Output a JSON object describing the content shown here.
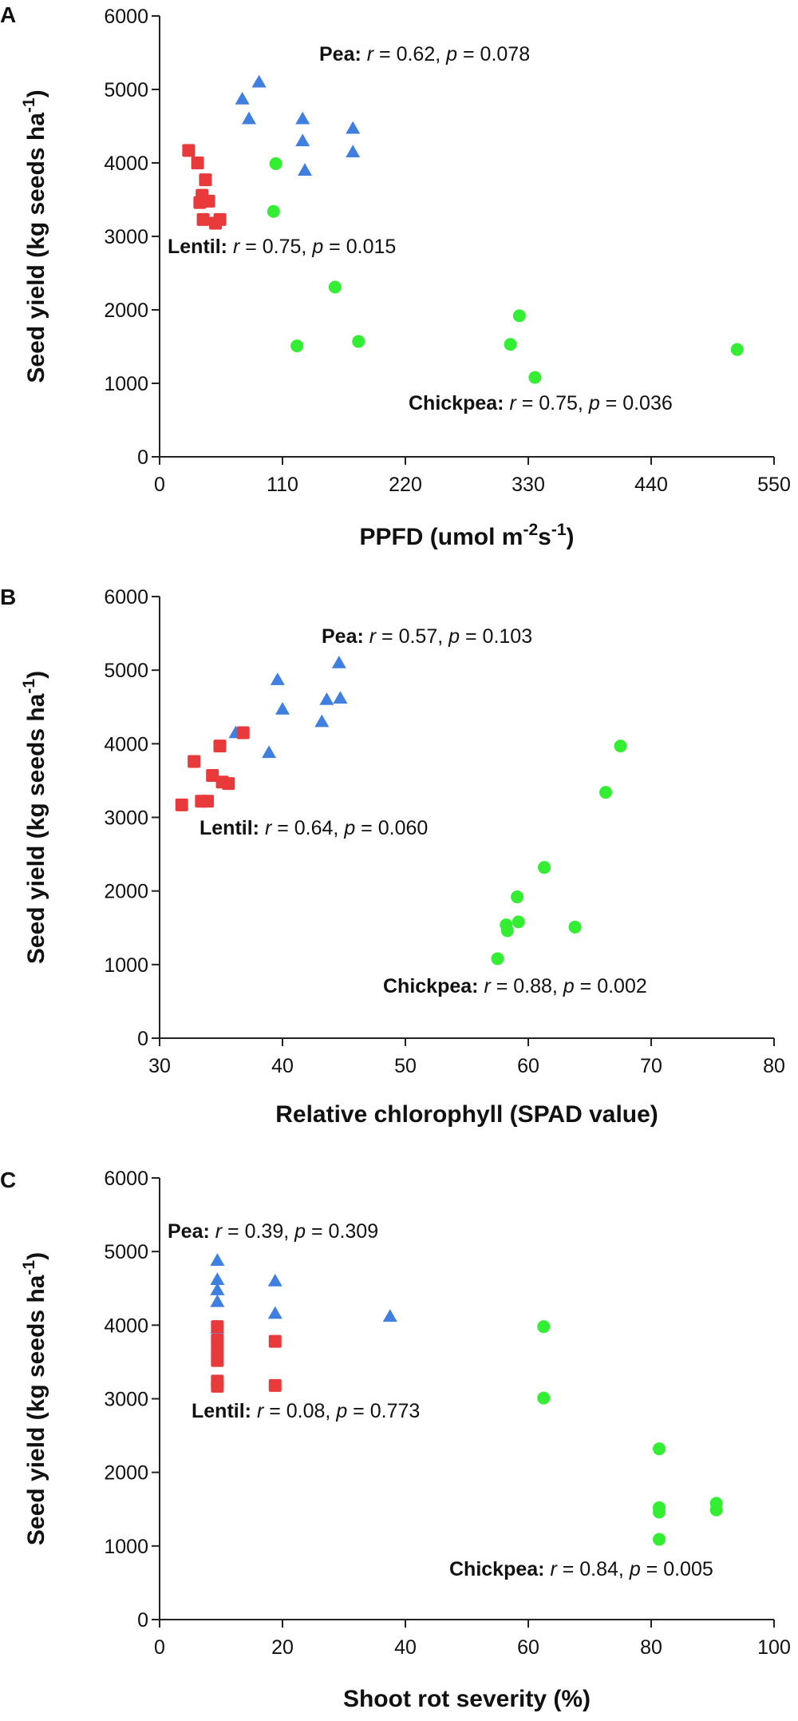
{
  "chart_data": [
    {
      "type": "scatter",
      "panel_label": "A",
      "xlabel": {
        "pre": "PPFD (",
        "italic": "u",
        "mid": "mol m",
        "sup1": "-2",
        "mid2": "s",
        "sup2": "-1",
        "post": ")"
      },
      "ylabel": {
        "main": "Seed yield (kg seeds ha",
        "sup": "-1",
        "post": ")"
      },
      "xlim": [
        0,
        550
      ],
      "ylim": [
        0,
        6000
      ],
      "xticks": [
        0,
        110,
        220,
        330,
        440,
        550
      ],
      "yticks": [
        0,
        1000,
        2000,
        3000,
        4000,
        5000,
        6000
      ],
      "series": [
        {
          "name": "Pea",
          "marker": "triangle",
          "color": "#3f7fe0",
          "points": [
            [
              74,
              4870
            ],
            [
              80,
              4600
            ],
            [
              89,
              5100
            ],
            [
              128,
              4600
            ],
            [
              128,
              4300
            ],
            [
              130,
              3900
            ],
            [
              173,
              4470
            ],
            [
              173,
              4150
            ]
          ],
          "annotation": {
            "species": "Pea:",
            "r_label": "r",
            "r_value": " = 0.62, ",
            "p_label": "p",
            "p_value": " = 0.078"
          }
        },
        {
          "name": "Lentil",
          "marker": "square",
          "color": "#e83a3a",
          "points": [
            [
              26,
              4170
            ],
            [
              34,
              4000
            ],
            [
              38,
              3560
            ],
            [
              36,
              3460
            ],
            [
              41,
              3770
            ],
            [
              44,
              3480
            ],
            [
              39,
              3230
            ],
            [
              50,
              3180
            ],
            [
              54,
              3230
            ]
          ],
          "annotation": {
            "species": "Lentil:",
            "r_label": "r",
            "r_value": " = 0.75, ",
            "p_label": "p",
            "p_value": " = 0.015"
          }
        },
        {
          "name": "Chickpea",
          "marker": "circle",
          "color": "#33ee33",
          "points": [
            [
              104,
              3990
            ],
            [
              102,
              3340
            ],
            [
              157,
              2310
            ],
            [
              123,
              1510
            ],
            [
              178,
              1570
            ],
            [
              314,
              1530
            ],
            [
              322,
              1920
            ],
            [
              336,
              1080
            ],
            [
              517,
              1460
            ]
          ],
          "annotation": {
            "species": "Chickpea:",
            "r_label": "r",
            "r_value": " = 0.75, ",
            "p_label": "p",
            "p_value": " = 0.036"
          }
        }
      ]
    },
    {
      "type": "scatter",
      "panel_label": "B",
      "xlabel": {
        "text": "Relative chlorophyll (SPAD value)"
      },
      "ylabel": {
        "main": "Seed yield (kg seeds ha",
        "sup": "-1",
        "post": ")"
      },
      "xlim": [
        30,
        80
      ],
      "ylim": [
        0,
        6000
      ],
      "xticks": [
        30,
        40,
        50,
        60,
        70,
        80
      ],
      "yticks": [
        0,
        1000,
        2000,
        3000,
        4000,
        5000,
        6000
      ],
      "series": [
        {
          "name": "Pea",
          "marker": "triangle",
          "color": "#3f7fe0",
          "points": [
            [
              36.2,
              4150
            ],
            [
              39.6,
              4870
            ],
            [
              40,
              4470
            ],
            [
              38.9,
              3880
            ],
            [
              43.2,
              4300
            ],
            [
              43.6,
              4600
            ],
            [
              44.6,
              5100
            ],
            [
              44.7,
              4620
            ]
          ],
          "annotation": {
            "species": "Pea:",
            "r_label": "r",
            "r_value": " = 0.57, ",
            "p_label": "p",
            "p_value": " = 0.103"
          }
        },
        {
          "name": "Lentil",
          "marker": "square",
          "color": "#e83a3a",
          "points": [
            [
              31.8,
              3170
            ],
            [
              32.8,
              3760
            ],
            [
              33.4,
              3220
            ],
            [
              33.9,
              3220
            ],
            [
              34.3,
              3570
            ],
            [
              34.9,
              3970
            ],
            [
              35.1,
              3480
            ],
            [
              35.6,
              3460
            ],
            [
              36.8,
              4150
            ]
          ],
          "annotation": {
            "species": "Lentil:",
            "r_label": "r",
            "r_value": " = 0.64, ",
            "p_label": "p",
            "p_value": " = 0.060"
          }
        },
        {
          "name": "Chickpea",
          "marker": "circle",
          "color": "#33ee33",
          "points": [
            [
              67.5,
              3970
            ],
            [
              66.3,
              3340
            ],
            [
              61.3,
              2320
            ],
            [
              59.1,
              1920
            ],
            [
              59.2,
              1580
            ],
            [
              58.2,
              1540
            ],
            [
              58.3,
              1460
            ],
            [
              63.8,
              1510
            ],
            [
              57.5,
              1080
            ]
          ],
          "annotation": {
            "species": "Chickpea:",
            "r_label": "r",
            "r_value": " = 0.88, ",
            "p_label": "p",
            "p_value": " = 0.002"
          }
        }
      ]
    },
    {
      "type": "scatter",
      "panel_label": "C",
      "xlabel": {
        "text": "Shoot rot severity (%)"
      },
      "ylabel": {
        "main": "Seed yield (kg seeds ha",
        "sup": "-1",
        "post": ")"
      },
      "xlim": [
        0,
        100
      ],
      "ylim": [
        0,
        6000
      ],
      "xticks": [
        0,
        20,
        40,
        60,
        80,
        100
      ],
      "yticks": [
        0,
        1000,
        2000,
        3000,
        4000,
        5000,
        6000
      ],
      "series": [
        {
          "name": "Pea",
          "marker": "triangle",
          "color": "#3f7fe0",
          "points": [
            [
              9.4,
              4880
            ],
            [
              9.4,
              4620
            ],
            [
              9.4,
              4480
            ],
            [
              9.4,
              4320
            ],
            [
              9.4,
              3960
            ],
            [
              18.8,
              4600
            ],
            [
              18.8,
              4160
            ],
            [
              37.5,
              4120
            ]
          ],
          "annotation": {
            "species": "Pea:",
            "r_label": "r",
            "r_value": " = 0.39, ",
            "p_label": "p",
            "p_value": " = 0.309"
          }
        },
        {
          "name": "Lentil",
          "marker": "square",
          "color": "#e83a3a",
          "points": [
            [
              9.4,
              3980
            ],
            [
              9.4,
              3800
            ],
            [
              9.4,
              3650
            ],
            [
              9.4,
              3520
            ],
            [
              9.4,
              3240
            ],
            [
              9.4,
              3170
            ],
            [
              18.8,
              3780
            ],
            [
              18.8,
              3180
            ]
          ],
          "annotation": {
            "species": "Lentil:",
            "r_label": "r",
            "r_value": " = 0.08, ",
            "p_label": "p",
            "p_value": " = 0.773"
          }
        },
        {
          "name": "Chickpea",
          "marker": "circle",
          "color": "#33ee33",
          "points": [
            [
              62.5,
              3980
            ],
            [
              62.5,
              3010
            ],
            [
              81.3,
              2320
            ],
            [
              81.3,
              1520
            ],
            [
              81.3,
              1460
            ],
            [
              81.3,
              1090
            ],
            [
              90.6,
              1580
            ],
            [
              90.6,
              1490
            ]
          ],
          "annotation": {
            "species": "Chickpea:",
            "r_label": "r",
            "r_value": " = 0.84, ",
            "p_label": "p",
            "p_value": " = 0.005"
          }
        }
      ]
    }
  ]
}
